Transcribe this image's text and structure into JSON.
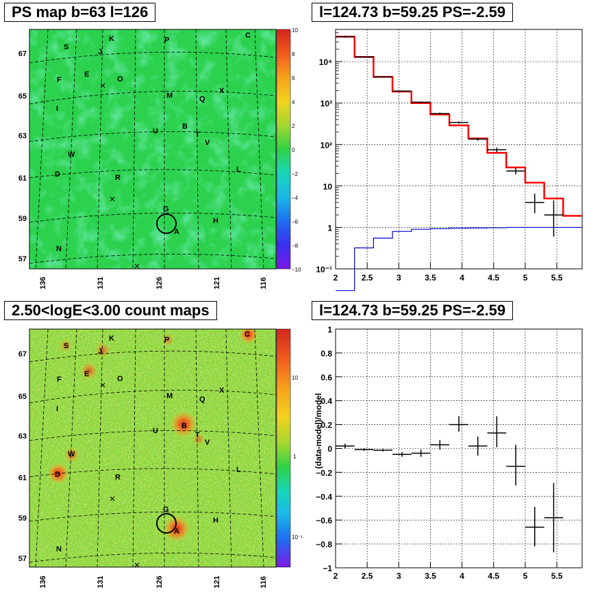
{
  "titles": {
    "ps_map": "PS map b=63 l=126",
    "spectrum": "l=124.73 b=59.25 PS=-2.59",
    "count_map": "2.50<logE<3.00 count maps",
    "residual": "l=124.73 b=59.25 PS=-2.59"
  },
  "maps": {
    "y_ticks": [
      "67",
      "65",
      "63",
      "61",
      "59",
      "57"
    ],
    "x_ticks": [
      "136",
      "131",
      "126",
      "121",
      "116"
    ],
    "source_labels": [
      "S",
      "K",
      "J",
      "P",
      "C",
      "E",
      "O",
      "F",
      "X",
      "M",
      "Q",
      "I",
      "B",
      "U",
      "T",
      "V",
      "W",
      "D",
      "L",
      "R",
      "G",
      "H",
      "A",
      "N"
    ],
    "ps_colorbar_ticks": [
      "10",
      "8",
      "6",
      "4",
      "2",
      "0",
      "−2",
      "−4",
      "−6",
      "−8",
      "−10"
    ],
    "count_colorbar_ticks": [
      "10",
      "1",
      "10⁻¹"
    ],
    "colors": {
      "ps_background": "#2cd24e",
      "count_background": "#8fd63f",
      "hotspot": "#e8482c"
    }
  },
  "chart_data": [
    {
      "type": "line",
      "title": "l=124.73 b=59.25 PS=-2.59",
      "xlabel": "",
      "ylabel": "",
      "xlim": [
        2,
        5.9
      ],
      "ylim": [
        0.1,
        60000
      ],
      "log_y": true,
      "grid": true,
      "x_ticks": [
        "2",
        "2.5",
        "3",
        "3.5",
        "4",
        "4.5",
        "5",
        "5.5"
      ],
      "y_ticks": [
        "10⁻¹",
        "1",
        "10",
        "10²",
        "10³",
        "10⁴"
      ],
      "series": [
        {
          "style": "step",
          "color": "#ff0000",
          "bin_edges": [
            2.0,
            2.3,
            2.6,
            2.9,
            3.2,
            3.5,
            3.8,
            4.1,
            4.4,
            4.7,
            5.0,
            5.3,
            5.6,
            5.9
          ],
          "values": [
            40000,
            13000,
            4300,
            1900,
            1000,
            530,
            290,
            140,
            63,
            28,
            12,
            5,
            1.9
          ]
        },
        {
          "style": "step",
          "color": "#0000cc",
          "bin_edges": [
            2.0,
            2.3,
            2.6,
            2.9,
            3.2,
            3.5,
            3.8,
            4.1,
            4.4,
            4.7,
            5.0,
            5.3,
            5.6,
            5.9
          ],
          "values": [
            0.03,
            0.32,
            0.55,
            0.8,
            0.9,
            0.93,
            0.96,
            0.97,
            0.98,
            1.0,
            1.0,
            1.0,
            1.0
          ]
        },
        {
          "style": "points",
          "color": "#000000",
          "points": [
            {
              "x": 2.15,
              "y": 40000,
              "xerr": 0.15,
              "ylo": 38000,
              "yhi": 42000
            },
            {
              "x": 2.45,
              "y": 13000,
              "xerr": 0.15,
              "ylo": 12500,
              "yhi": 13500
            },
            {
              "x": 2.75,
              "y": 4300,
              "xerr": 0.15,
              "ylo": 4150,
              "yhi": 4450
            },
            {
              "x": 3.05,
              "y": 1950,
              "xerr": 0.15,
              "ylo": 1880,
              "yhi": 2020
            },
            {
              "x": 3.35,
              "y": 1050,
              "xerr": 0.15,
              "ylo": 1000,
              "yhi": 1100
            },
            {
              "x": 3.65,
              "y": 560,
              "xerr": 0.15,
              "ylo": 530,
              "yhi": 590
            },
            {
              "x": 3.95,
              "y": 340,
              "xerr": 0.15,
              "ylo": 320,
              "yhi": 360
            },
            {
              "x": 4.25,
              "y": 135,
              "xerr": 0.15,
              "ylo": 124,
              "yhi": 146
            },
            {
              "x": 4.55,
              "y": 75,
              "xerr": 0.15,
              "ylo": 66,
              "yhi": 85
            },
            {
              "x": 4.85,
              "y": 23,
              "xerr": 0.15,
              "ylo": 19,
              "yhi": 28
            },
            {
              "x": 5.15,
              "y": 4,
              "xerr": 0.15,
              "ylo": 2.2,
              "yhi": 6.5
            },
            {
              "x": 5.45,
              "y": 2,
              "xerr": 0.15,
              "ylo": 0.6,
              "yhi": 4.5
            }
          ]
        }
      ]
    },
    {
      "type": "scatter",
      "title": "l=124.73 b=59.25 PS=-2.59",
      "xlabel": "",
      "ylabel": "(data-model)/model",
      "xlim": [
        2,
        5.9
      ],
      "ylim": [
        -1,
        1
      ],
      "grid": true,
      "x_ticks": [
        "2",
        "2.5",
        "3",
        "3.5",
        "4",
        "4.5",
        "5",
        "5.5"
      ],
      "y_ticks": [
        "−1",
        "−0.8",
        "−0.6",
        "−0.4",
        "−0.2",
        "0",
        "0.2",
        "0.4",
        "0.6",
        "0.8",
        "1"
      ],
      "series": [
        {
          "color": "#000000",
          "points": [
            {
              "x": 2.15,
              "y": 0.02,
              "xerr": 0.15,
              "ylo": 0.0,
              "yhi": 0.04
            },
            {
              "x": 2.45,
              "y": -0.01,
              "xerr": 0.15,
              "ylo": -0.02,
              "yhi": 0.0
            },
            {
              "x": 2.75,
              "y": -0.015,
              "xerr": 0.15,
              "ylo": -0.025,
              "yhi": -0.005
            },
            {
              "x": 3.05,
              "y": -0.05,
              "xerr": 0.15,
              "ylo": -0.07,
              "yhi": -0.03
            },
            {
              "x": 3.35,
              "y": -0.04,
              "xerr": 0.15,
              "ylo": -0.07,
              "yhi": -0.01
            },
            {
              "x": 3.65,
              "y": 0.03,
              "xerr": 0.15,
              "ylo": -0.01,
              "yhi": 0.07
            },
            {
              "x": 3.95,
              "y": 0.2,
              "xerr": 0.15,
              "ylo": 0.14,
              "yhi": 0.27
            },
            {
              "x": 4.25,
              "y": 0.02,
              "xerr": 0.15,
              "ylo": -0.06,
              "yhi": 0.1
            },
            {
              "x": 4.55,
              "y": 0.13,
              "xerr": 0.15,
              "ylo": 0.01,
              "yhi": 0.27
            },
            {
              "x": 4.85,
              "y": -0.15,
              "xerr": 0.15,
              "ylo": -0.31,
              "yhi": 0.03
            },
            {
              "x": 5.15,
              "y": -0.66,
              "xerr": 0.15,
              "ylo": -0.82,
              "yhi": -0.49
            },
            {
              "x": 5.45,
              "y": -0.58,
              "xerr": 0.15,
              "ylo": -0.87,
              "yhi": -0.29
            }
          ]
        }
      ]
    }
  ]
}
